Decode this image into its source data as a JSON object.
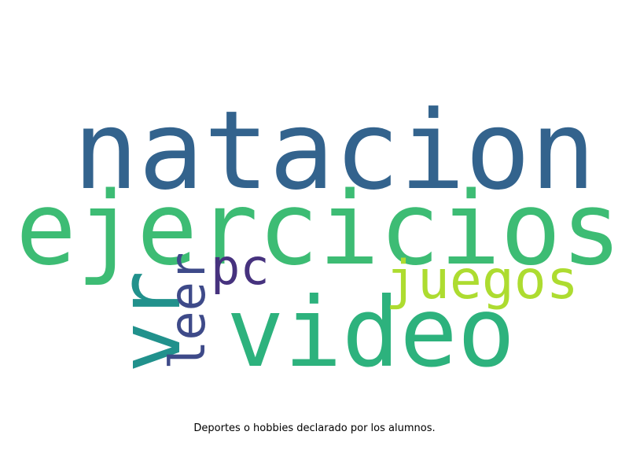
{
  "wordcloud": {
    "words": [
      {
        "text": "natacion",
        "color": "#33638d"
      },
      {
        "text": "ejercicios",
        "color": "#3dbc74"
      },
      {
        "text": "video",
        "color": "#2db27d"
      },
      {
        "text": "vr",
        "color": "#21918c"
      },
      {
        "text": "juegos",
        "color": "#addc30"
      },
      {
        "text": "pc",
        "color": "#46327e"
      },
      {
        "text": "leer",
        "color": "#3e4a89"
      }
    ]
  },
  "caption": "Deportes o hobbies declarado por los alumnos."
}
